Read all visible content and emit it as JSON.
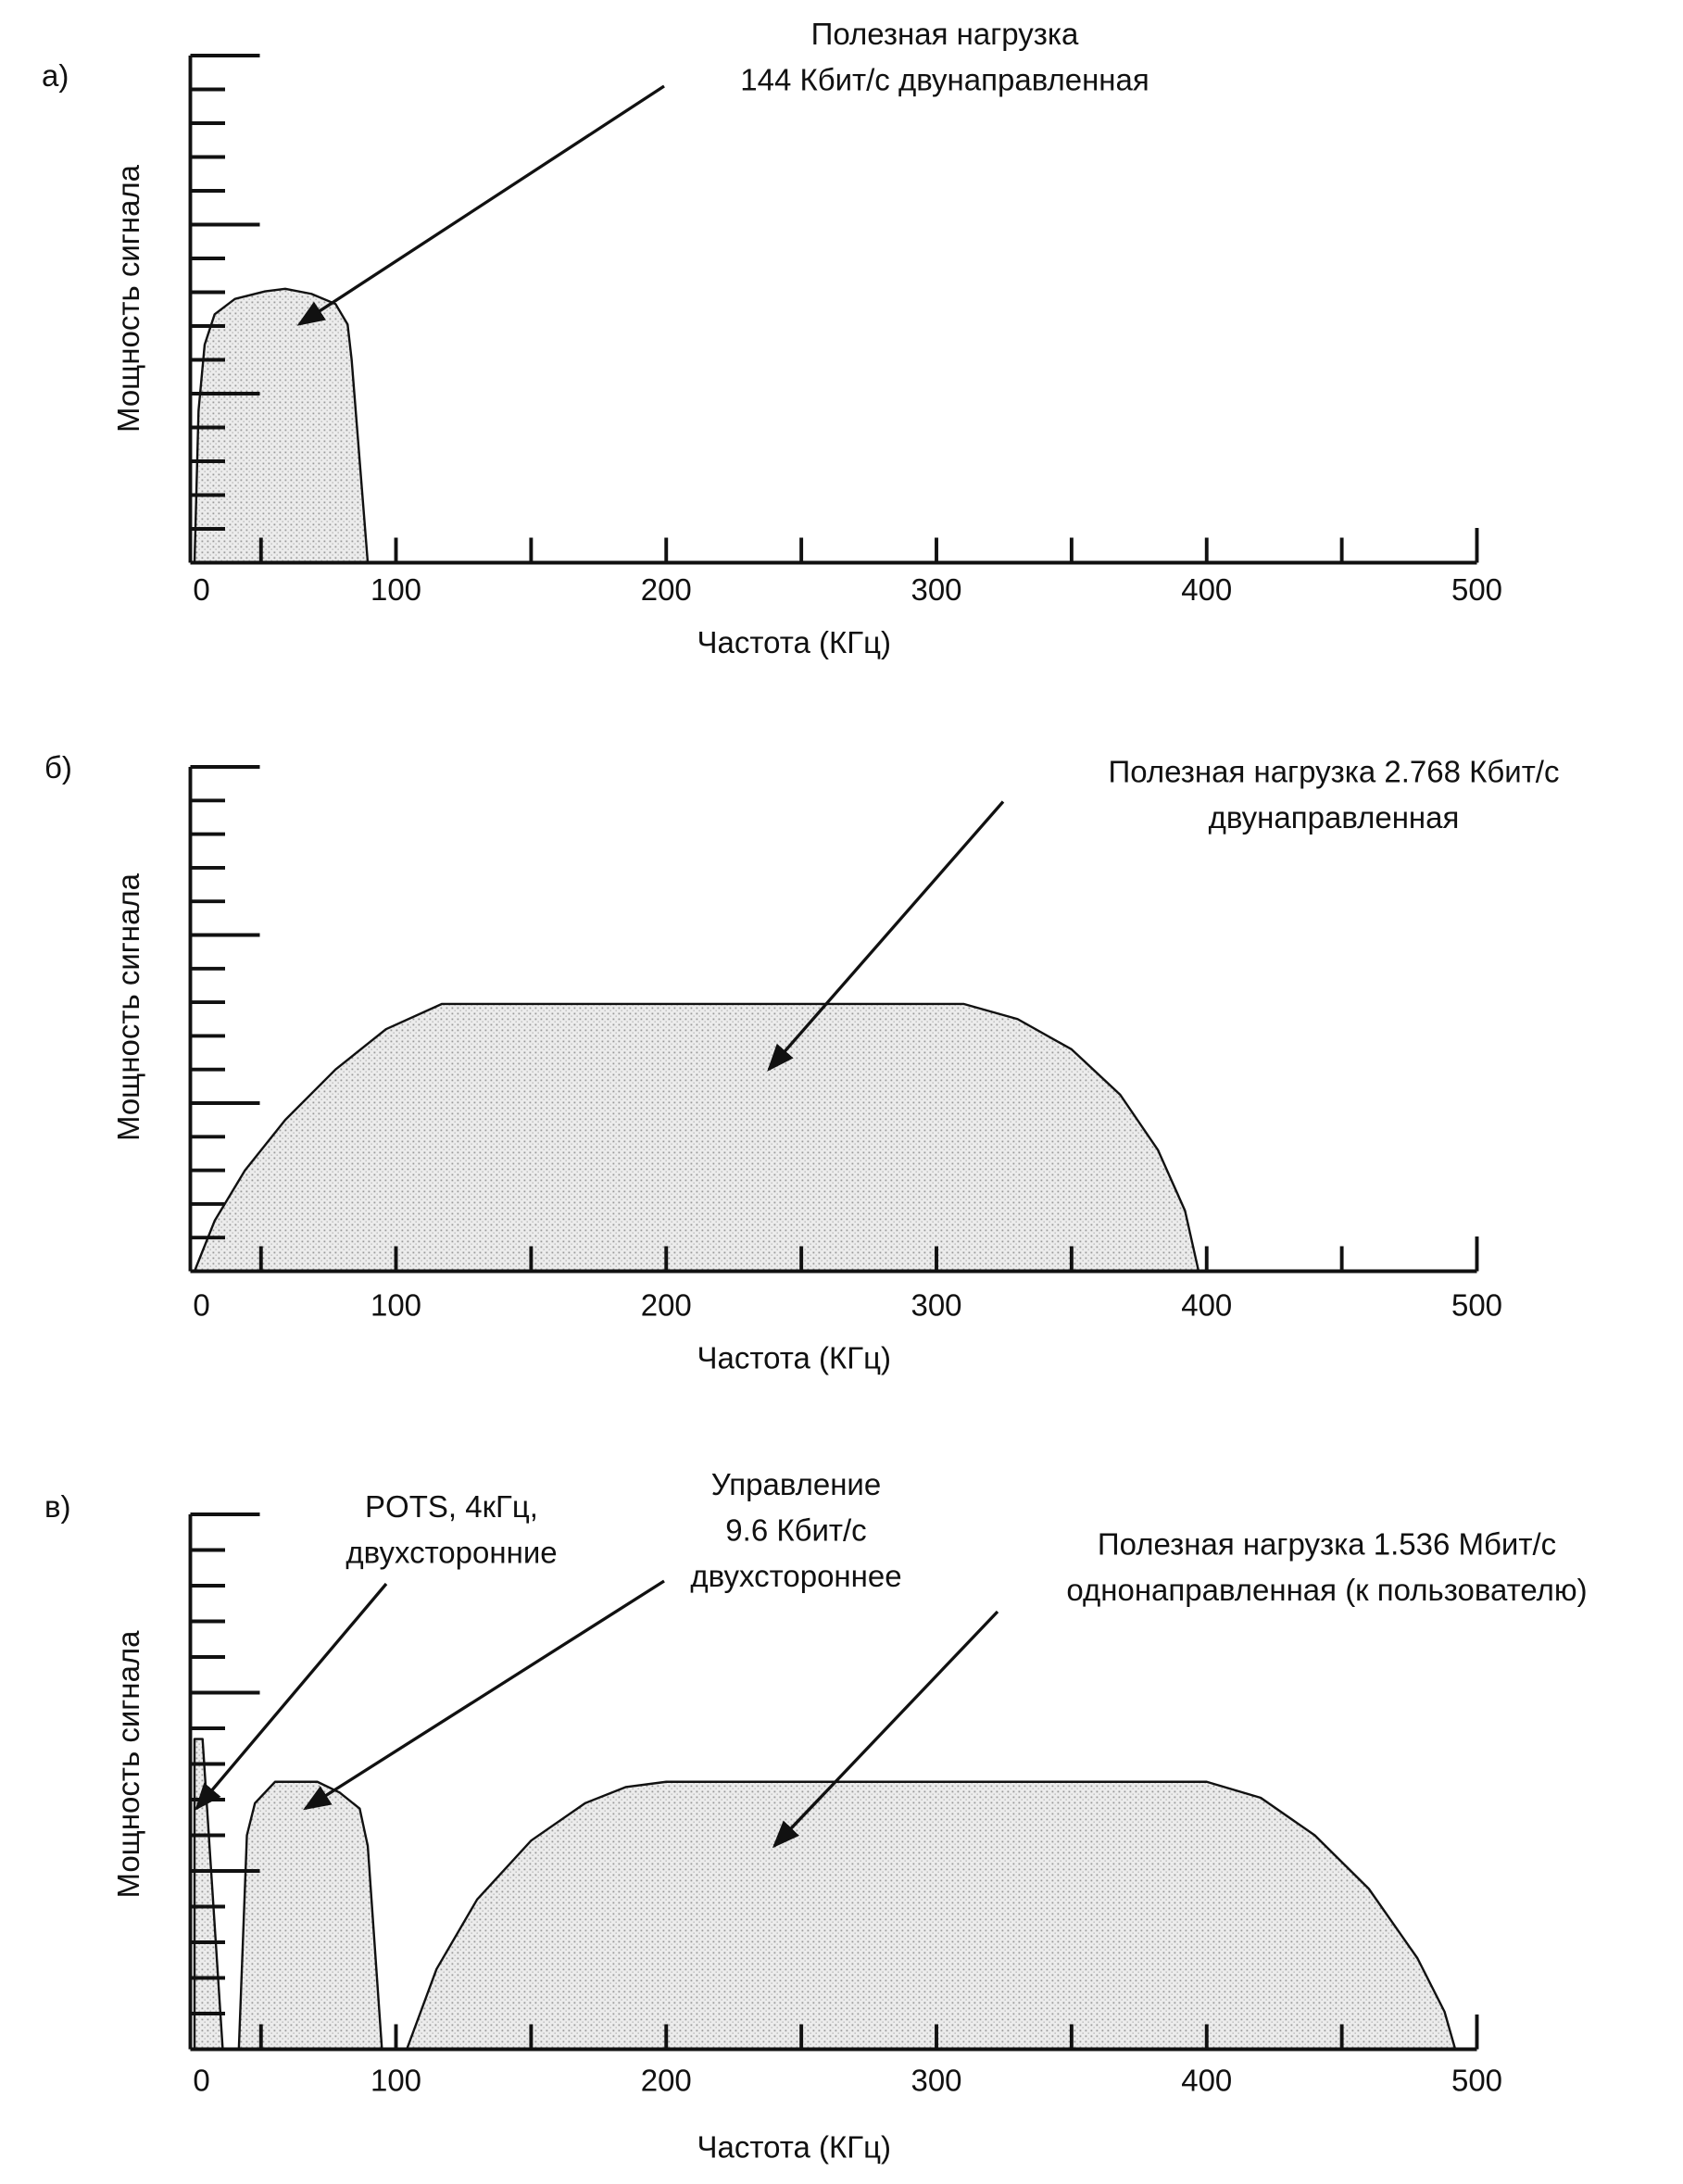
{
  "chart_data": [
    {
      "type": "area",
      "panel_label": "а)",
      "xlabel": "Частота (КГц)",
      "ylabel": "Мощность сигнала",
      "xlim": [
        0,
        500
      ],
      "ylim": [
        0,
        1
      ],
      "xtick_labels": [
        "0",
        "100",
        "200",
        "300",
        "400",
        "500"
      ],
      "xtick_values": [
        0,
        100,
        200,
        300,
        400,
        500
      ],
      "minor_ticks": [
        33,
        100,
        150,
        200,
        250,
        300,
        350,
        400,
        450,
        500
      ],
      "series": [
        {
          "name": "Полезная нагрузка 144 Кбит/с двунаправленная",
          "points": [
            [
              0,
              0
            ],
            [
              2,
              0.3
            ],
            [
              5,
              0.43
            ],
            [
              10,
              0.49
            ],
            [
              20,
              0.52
            ],
            [
              35,
              0.535
            ],
            [
              45,
              0.54
            ],
            [
              58,
              0.53
            ],
            [
              70,
              0.51
            ],
            [
              76,
              0.47
            ],
            [
              78,
              0.4
            ],
            [
              86,
              0
            ]
          ]
        }
      ],
      "annotations": [
        {
          "lines": [
            "Полезная нагрузка",
            "144 Кбит/с двунаправленная"
          ],
          "target_khz": 52,
          "target_power": 0.47
        }
      ]
    },
    {
      "type": "area",
      "panel_label": "б)",
      "xlabel": "Частота (КГц)",
      "ylabel": "Мощность сигнала",
      "xlim": [
        0,
        500
      ],
      "ylim": [
        0,
        1
      ],
      "xtick_labels": [
        "0",
        "100",
        "200",
        "300",
        "400",
        "500"
      ],
      "xtick_values": [
        0,
        100,
        200,
        300,
        400,
        500
      ],
      "minor_ticks": [
        33,
        100,
        150,
        200,
        250,
        300,
        350,
        400,
        450,
        500
      ],
      "series": [
        {
          "name": "Полезная нагрузка 2.768 Кбит/с двунаправленная",
          "points": [
            [
              0,
              0
            ],
            [
              10,
              0.1
            ],
            [
              25,
              0.2
            ],
            [
              45,
              0.3
            ],
            [
              70,
              0.4
            ],
            [
              95,
              0.48
            ],
            [
              117,
              0.53
            ],
            [
              310,
              0.53
            ],
            [
              330,
              0.5
            ],
            [
              350,
              0.44
            ],
            [
              368,
              0.35
            ],
            [
              382,
              0.24
            ],
            [
              392,
              0.12
            ],
            [
              397,
              0
            ]
          ]
        }
      ],
      "annotations": [
        {
          "lines": [
            "Полезная нагрузка 2.768 Кбит/с",
            "двунаправленная"
          ],
          "target_khz": 238,
          "target_power": 0.4
        }
      ]
    },
    {
      "type": "area",
      "panel_label": "в)",
      "xlabel": "Частота (КГц)",
      "ylabel": "Мощность сигнала",
      "xlim": [
        0,
        500
      ],
      "ylim": [
        0,
        1
      ],
      "xtick_labels": [
        "0",
        "100",
        "200",
        "300",
        "400",
        "500"
      ],
      "xtick_values": [
        0,
        100,
        200,
        300,
        400,
        500
      ],
      "minor_ticks": [
        33,
        100,
        150,
        200,
        250,
        300,
        350,
        400,
        450,
        500
      ],
      "series": [
        {
          "name": "POTS, 4кГц, двухсторонние",
          "points": [
            [
              0,
              0
            ],
            [
              0,
              0.58
            ],
            [
              4,
              0.58
            ],
            [
              14,
              0
            ]
          ]
        },
        {
          "name": "Управление 9.6 Кбит/с двухстороннее",
          "points": [
            [
              22,
              0
            ],
            [
              26,
              0.4
            ],
            [
              30,
              0.46
            ],
            [
              40,
              0.5
            ],
            [
              55,
              0.5
            ],
            [
              61,
              0.5
            ],
            [
              72,
              0.48
            ],
            [
              82,
              0.45
            ],
            [
              86,
              0.38
            ],
            [
              93,
              0
            ]
          ]
        },
        {
          "name": "Полезная нагрузка 1.536 Мбит/с однонаправленная (к пользователю)",
          "points": [
            [
              104,
              0
            ],
            [
              115,
              0.15
            ],
            [
              130,
              0.28
            ],
            [
              150,
              0.39
            ],
            [
              170,
              0.46
            ],
            [
              185,
              0.49
            ],
            [
              200,
              0.5
            ],
            [
              400,
              0.5
            ],
            [
              420,
              0.47
            ],
            [
              440,
              0.4
            ],
            [
              460,
              0.3
            ],
            [
              478,
              0.17
            ],
            [
              488,
              0.07
            ],
            [
              492,
              0
            ]
          ]
        }
      ],
      "annotations": [
        {
          "lines": [
            "POTS, 4кГц,",
            "двухсторонние"
          ],
          "target_khz": 1,
          "target_power": 0.45
        },
        {
          "lines": [
            "Управление",
            "9.6 Кбит/с",
            "двухстороннее"
          ],
          "target_khz": 55,
          "target_power": 0.45
        },
        {
          "lines": [
            "Полезная нагрузка 1.536 Мбит/с",
            "однонаправленная (к пользователю)"
          ],
          "target_khz": 240,
          "target_power": 0.38
        }
      ]
    }
  ],
  "colors": {
    "ink": "#111111",
    "fill": "#d9d9d9",
    "dots": "#9a9a9a"
  }
}
